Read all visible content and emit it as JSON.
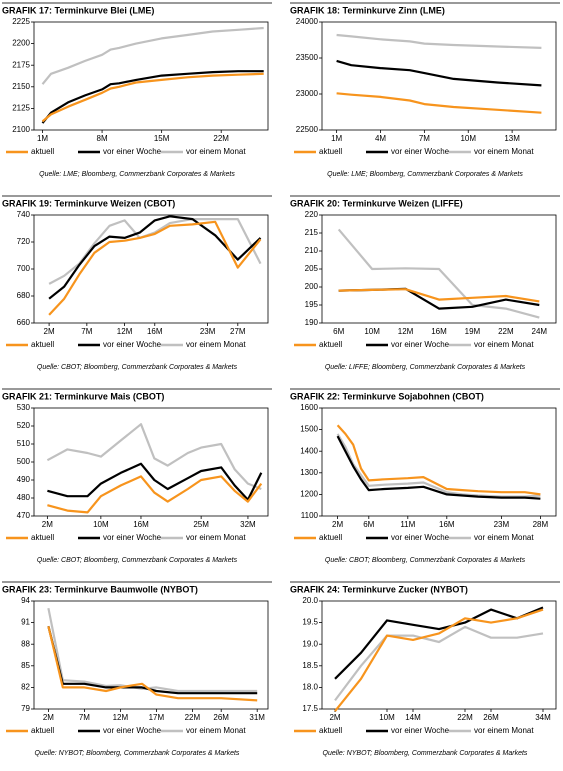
{
  "chart_data": [
    {
      "type": "line",
      "title": "GRAFIK 17: Terminkurve Blei (LME)",
      "source": "Quelle: LME; Bloomberg, Commerzbank Corporates & Markets",
      "x": [
        1,
        2,
        4,
        6,
        8,
        9,
        10,
        12,
        15,
        18,
        21,
        24,
        27
      ],
      "xlim": [
        0,
        27.5
      ],
      "xticks": [
        {
          "value": 1,
          "label": "1M"
        },
        {
          "value": 8,
          "label": "8M"
        },
        {
          "value": 15,
          "label": "15M"
        },
        {
          "value": 22,
          "label": "22M"
        }
      ],
      "ylim": [
        2100,
        2225
      ],
      "yticks": [
        2100,
        2125,
        2150,
        2175,
        2200,
        2225
      ],
      "series": [
        {
          "name": "aktuell",
          "color": "#f7941d",
          "values": [
            2110,
            2118,
            2127,
            2135,
            2143,
            2148,
            2150,
            2155,
            2158,
            2161,
            2163,
            2164,
            2165
          ]
        },
        {
          "name": "vor einer Woche",
          "color": "#000000",
          "values": [
            2108,
            2120,
            2132,
            2140,
            2147,
            2153,
            2154,
            2158,
            2163,
            2165,
            2167,
            2168,
            2168
          ]
        },
        {
          "name": "vor einem Monat",
          "color": "#c0c0c0",
          "values": [
            2153,
            2165,
            2172,
            2180,
            2187,
            2193,
            2195,
            2200,
            2206,
            2210,
            2214,
            2216,
            2218
          ]
        }
      ]
    },
    {
      "type": "line",
      "title": "GRAFIK 18: Terminkurve Zinn (LME)",
      "source": "Quelle: LME; Bloomberg, Commerzbank Corporates & Markets",
      "x": [
        1,
        2,
        4,
        6,
        7,
        9,
        12,
        15
      ],
      "xlim": [
        0,
        16
      ],
      "xticks": [
        {
          "value": 1,
          "label": "1M"
        },
        {
          "value": 4,
          "label": "4M"
        },
        {
          "value": 7,
          "label": "7M"
        },
        {
          "value": 10,
          "label": "10M"
        },
        {
          "value": 13,
          "label": "13M"
        }
      ],
      "ylim": [
        22500,
        24000
      ],
      "yticks": [
        22500,
        23000,
        23500,
        24000
      ],
      "series": [
        {
          "name": "aktuell",
          "color": "#f7941d",
          "values": [
            23010,
            22990,
            22960,
            22910,
            22860,
            22820,
            22780,
            22740
          ]
        },
        {
          "name": "vor einer Woche",
          "color": "#000000",
          "values": [
            23460,
            23400,
            23360,
            23330,
            23290,
            23210,
            23160,
            23120
          ]
        },
        {
          "name": "vor einem Monat",
          "color": "#c0c0c0",
          "values": [
            23820,
            23800,
            23760,
            23730,
            23700,
            23680,
            23660,
            23640
          ]
        }
      ]
    },
    {
      "type": "line",
      "title": "GRAFIK 19: Terminkurve Weizen (CBOT)",
      "source": "Quelle: CBOT; Bloomberg, Commerzbank Corporates & Markets",
      "x": [
        2,
        4,
        6,
        8,
        10,
        12,
        14,
        16,
        18,
        21,
        24,
        27,
        30
      ],
      "xlim": [
        0,
        31
      ],
      "xticks": [
        {
          "value": 2,
          "label": "2M"
        },
        {
          "value": 7,
          "label": "7M"
        },
        {
          "value": 12,
          "label": "12M"
        },
        {
          "value": 16,
          "label": "16M"
        },
        {
          "value": 23,
          "label": "23M"
        },
        {
          "value": 27,
          "label": "27M"
        }
      ],
      "ylim": [
        660,
        740
      ],
      "yticks": [
        660,
        680,
        700,
        720,
        740
      ],
      "series": [
        {
          "name": "aktuell",
          "color": "#f7941d",
          "values": [
            666,
            678,
            696,
            712,
            720,
            721,
            723,
            726,
            732,
            733,
            735,
            701,
            722
          ]
        },
        {
          "name": "vor einer Woche",
          "color": "#000000",
          "values": [
            678,
            687,
            703,
            717,
            724,
            723,
            727,
            736,
            739,
            737,
            725,
            707,
            723
          ]
        },
        {
          "name": "vor einem Monat",
          "color": "#c0c0c0",
          "values": [
            689,
            695,
            704,
            719,
            732,
            736,
            723,
            727,
            734,
            737,
            737,
            737,
            704
          ]
        }
      ]
    },
    {
      "type": "line",
      "title": "GRAFIK 20: Terminkurve Weizen (LIFFE)",
      "source": "Quelle: LIFFE; Bloomberg, Commerzbank Corporates & Markets",
      "categories": [
        "6M",
        "10M",
        "12M",
        "16M",
        "19M",
        "22M",
        "24M"
      ],
      "ylim": [
        190,
        220
      ],
      "yticks": [
        190,
        195,
        200,
        205,
        210,
        215,
        220
      ],
      "series": [
        {
          "name": "aktuell",
          "color": "#f7941d",
          "values": [
            199,
            199.2,
            199.4,
            196.5,
            197,
            197.5,
            196
          ]
        },
        {
          "name": "vor einer Woche",
          "color": "#000000",
          "values": [
            199,
            199.2,
            199.5,
            194,
            194.5,
            196.5,
            195
          ]
        },
        {
          "name": "vor einem Monat",
          "color": "#c0c0c0",
          "values": [
            216,
            205,
            205.2,
            205,
            195,
            194,
            191.5
          ]
        }
      ]
    },
    {
      "type": "line",
      "title": "GRAFIK 21: Terminkurve Mais (CBOT)",
      "source": "Quelle: CBOT; Bloomberg, Commerzbank Corporates & Markets",
      "x": [
        2,
        5,
        8,
        10,
        13,
        16,
        18,
        20,
        23,
        25,
        28,
        30,
        32,
        34
      ],
      "xlim": [
        0,
        35
      ],
      "xticks": [
        {
          "value": 2,
          "label": "2M"
        },
        {
          "value": 10,
          "label": "10M"
        },
        {
          "value": 16,
          "label": "16M"
        },
        {
          "value": 25,
          "label": "25M"
        },
        {
          "value": 32,
          "label": "32M"
        }
      ],
      "ylim": [
        470,
        530
      ],
      "yticks": [
        470,
        480,
        490,
        500,
        510,
        520,
        530
      ],
      "series": [
        {
          "name": "aktuell",
          "color": "#f7941d",
          "values": [
            476,
            473,
            472,
            481,
            487,
            492,
            483,
            478,
            485,
            490,
            492,
            484,
            478,
            488
          ]
        },
        {
          "name": "vor einer Woche",
          "color": "#000000",
          "values": [
            484,
            481,
            481,
            488,
            494,
            499,
            490,
            485,
            491,
            495,
            497,
            487,
            479,
            494
          ]
        },
        {
          "name": "vor einem Monat",
          "color": "#c0c0c0",
          "values": [
            501,
            507,
            505,
            503,
            512,
            521,
            502,
            498,
            505,
            508,
            510,
            496,
            488,
            485
          ]
        }
      ]
    },
    {
      "type": "line",
      "title": "GRAFIK 22: Terminkurve Sojabohnen (CBOT)",
      "source": "Quelle: CBOT; Bloomberg, Commerzbank Corporates & Markets",
      "x": [
        2,
        3,
        4,
        5,
        6,
        8,
        11,
        13,
        16,
        18,
        20,
        23,
        26,
        28
      ],
      "xlim": [
        0,
        30
      ],
      "xticks": [
        {
          "value": 2,
          "label": "2M"
        },
        {
          "value": 6,
          "label": "6M"
        },
        {
          "value": 11,
          "label": "11M"
        },
        {
          "value": 16,
          "label": "16M"
        },
        {
          "value": 23,
          "label": "23M"
        },
        {
          "value": 28,
          "label": "28M"
        }
      ],
      "ylim": [
        1100,
        1600
      ],
      "yticks": [
        1100,
        1200,
        1300,
        1400,
        1500,
        1600
      ],
      "series": [
        {
          "name": "aktuell",
          "color": "#f7941d",
          "values": [
            1520,
            1480,
            1430,
            1320,
            1265,
            1270,
            1275,
            1280,
            1225,
            1220,
            1215,
            1210,
            1210,
            1200
          ]
        },
        {
          "name": "vor einer Woche",
          "color": "#000000",
          "values": [
            1470,
            1400,
            1330,
            1270,
            1220,
            1225,
            1230,
            1235,
            1200,
            1195,
            1190,
            1185,
            1185,
            1180
          ]
        },
        {
          "name": "vor einem Monat",
          "color": "#c0c0c0",
          "values": [
            1480,
            1420,
            1340,
            1290,
            1240,
            1245,
            1250,
            1255,
            1210,
            1200,
            1195,
            1190,
            1190,
            1195
          ]
        }
      ]
    },
    {
      "type": "line",
      "title": "GRAFIK 23: Terminkurve Baumwolle (NYBOT)",
      "source": "Quelle: NYBOT; Bloomberg, Commerzbank Corporates & Markets",
      "x": [
        2,
        4,
        7,
        10,
        12,
        15,
        17,
        20,
        22,
        26,
        31
      ],
      "xlim": [
        0,
        32.5
      ],
      "xticks": [
        {
          "value": 2,
          "label": "2M"
        },
        {
          "value": 7,
          "label": "7M"
        },
        {
          "value": 12,
          "label": "12M"
        },
        {
          "value": 17,
          "label": "17M"
        },
        {
          "value": 22,
          "label": "22M"
        },
        {
          "value": 26,
          "label": "26M"
        },
        {
          "value": 31,
          "label": "31M"
        }
      ],
      "ylim": [
        79,
        94
      ],
      "yticks": [
        79,
        82,
        85,
        88,
        91,
        94
      ],
      "series": [
        {
          "name": "aktuell",
          "color": "#f7941d",
          "values": [
            90.5,
            82,
            82,
            81.5,
            82,
            82.5,
            81,
            80.5,
            80.5,
            80.5,
            80.2
          ]
        },
        {
          "name": "vor einer Woche",
          "color": "#000000",
          "values": [
            90.5,
            82.5,
            82.5,
            82,
            82,
            82,
            81.5,
            81.2,
            81.2,
            81.2,
            81.2
          ]
        },
        {
          "name": "vor einem Monat",
          "color": "#c0c0c0",
          "values": [
            93,
            83,
            82.8,
            82.2,
            82.3,
            81.8,
            82,
            81.5,
            81.5,
            81.5,
            81.5
          ]
        }
      ]
    },
    {
      "type": "line",
      "title": "GRAFIK 24: Terminkurve Zucker (NYBOT)",
      "source": "Quelle: NYBOT; Bloomberg, Commerzbank Corporates & Markets",
      "x": [
        2,
        6,
        10,
        14,
        18,
        22,
        26,
        30,
        34
      ],
      "xlim": [
        0,
        36
      ],
      "xticks": [
        {
          "value": 2,
          "label": "2M"
        },
        {
          "value": 10,
          "label": "10M"
        },
        {
          "value": 14,
          "label": "14M"
        },
        {
          "value": 22,
          "label": "22M"
        },
        {
          "value": 26,
          "label": "26M"
        },
        {
          "value": 34,
          "label": "34M"
        }
      ],
      "ylim": [
        17.5,
        20
      ],
      "yticks": [
        17.5,
        {
          "value": 18,
          "label": "18.0"
        },
        18.5,
        {
          "value": 19,
          "label": "19.0"
        },
        19.5,
        {
          "value": 20,
          "label": "20.0"
        }
      ],
      "series": [
        {
          "name": "aktuell",
          "color": "#f7941d",
          "values": [
            17.45,
            18.2,
            19.2,
            19.1,
            19.25,
            19.6,
            19.5,
            19.6,
            19.8
          ]
        },
        {
          "name": "vor einer Woche",
          "color": "#000000",
          "values": [
            18.2,
            18.8,
            19.55,
            19.45,
            19.35,
            19.5,
            19.8,
            19.6,
            19.85
          ]
        },
        {
          "name": "vor einem Monat",
          "color": "#c0c0c0",
          "values": [
            17.7,
            18.5,
            19.2,
            19.2,
            19.05,
            19.4,
            19.15,
            19.15,
            19.25
          ]
        }
      ]
    }
  ]
}
